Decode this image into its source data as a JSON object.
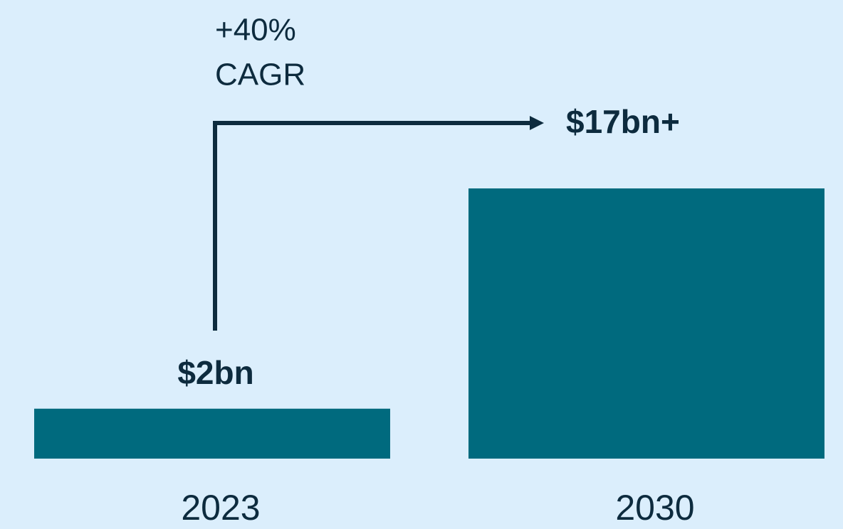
{
  "chart_data": {
    "type": "bar",
    "categories": [
      "2023",
      "2030"
    ],
    "values": [
      2,
      17
    ],
    "value_labels": [
      "$2bn",
      "$17bn+"
    ],
    "annotation": [
      "+40%",
      "CAGR"
    ],
    "color": "#006a7e",
    "ylim": [
      -1.4,
      17
    ]
  }
}
